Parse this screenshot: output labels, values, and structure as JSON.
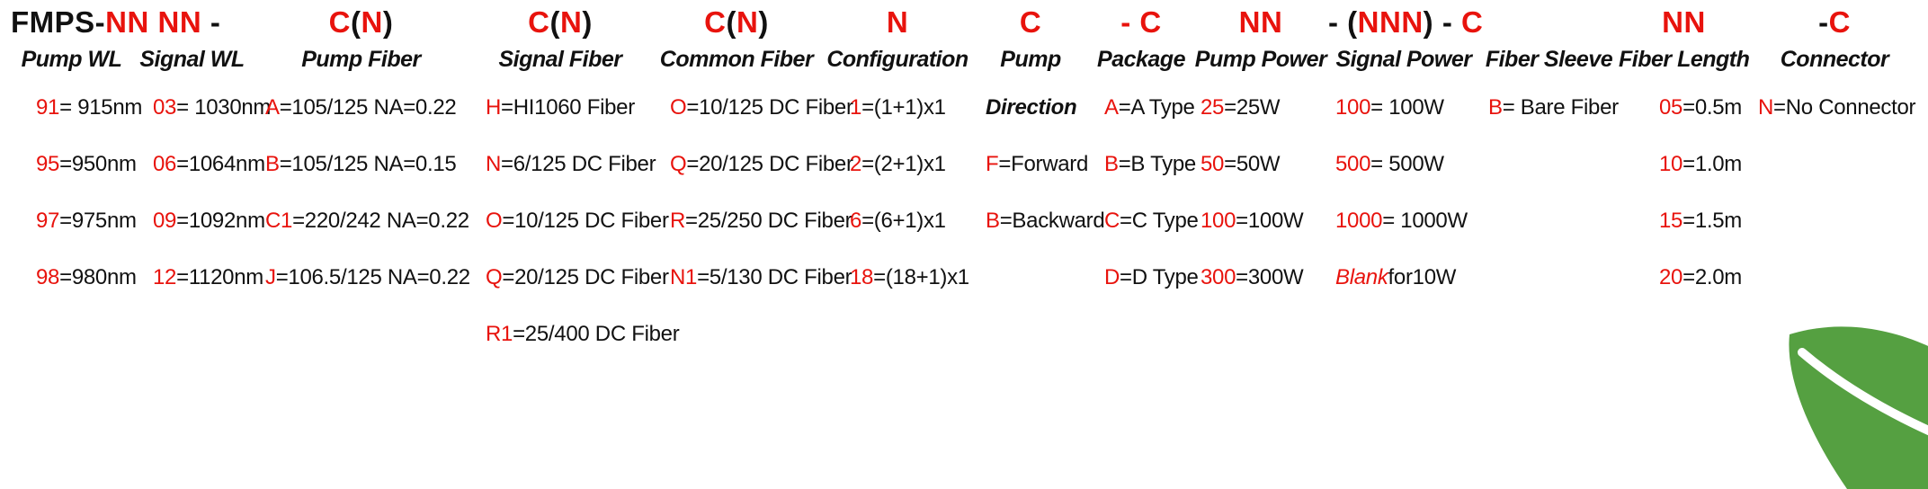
{
  "colors": {
    "red": "#e8130d",
    "leaf_green": "#55a041",
    "text": "#111111"
  },
  "code_row": [
    {
      "span": 2,
      "parts": [
        {
          "t": "FMPS-",
          "red": false
        },
        {
          "t": "NN NN",
          "red": true
        },
        {
          "t": " - ",
          "red": false
        }
      ]
    },
    {
      "parts": [
        {
          "t": "C",
          "red": true
        },
        {
          "t": "(",
          "red": false
        },
        {
          "t": "N",
          "red": true
        },
        {
          "t": ")",
          "red": false
        }
      ]
    },
    {
      "parts": [
        {
          "t": "C",
          "red": true
        },
        {
          "t": "(",
          "red": false
        },
        {
          "t": "N",
          "red": true
        },
        {
          "t": ")",
          "red": false
        }
      ]
    },
    {
      "parts": [
        {
          "t": "C",
          "red": true
        },
        {
          "t": "(",
          "red": false
        },
        {
          "t": "N",
          "red": true
        },
        {
          "t": ")",
          "red": false
        }
      ]
    },
    {
      "parts": [
        {
          "t": "N",
          "red": true
        }
      ]
    },
    {
      "parts": [
        {
          "t": "C",
          "red": true
        }
      ]
    },
    {
      "parts": [
        {
          "t": "- C",
          "red": true
        }
      ]
    },
    {
      "parts": [
        {
          "t": "NN",
          "red": true
        }
      ]
    },
    {
      "parts": [
        {
          "t": "- (",
          "red": false
        },
        {
          "t": "NNN",
          "red": true
        },
        {
          "t": ") - ",
          "red": false
        },
        {
          "t": "C",
          "red": true
        }
      ]
    },
    {
      "parts": []
    },
    {
      "parts": [
        {
          "t": "NN",
          "red": true
        }
      ]
    },
    {
      "parts": [
        {
          "t": "-",
          "red": false
        },
        {
          "t": "C",
          "red": true
        }
      ]
    }
  ],
  "columns": [
    {
      "header": "Pump WL",
      "entries": [
        {
          "code": "91",
          "desc": "= 915nm"
        },
        {
          "code": "95",
          "desc": "=950nm"
        },
        {
          "code": "97",
          "desc": "=975nm"
        },
        {
          "code": "98",
          "desc": "=980nm"
        }
      ]
    },
    {
      "header": "Signal WL",
      "entries": [
        {
          "code": "03",
          "desc": "= 1030nm"
        },
        {
          "code": "06",
          "desc": "=1064nm"
        },
        {
          "code": "09",
          "desc": "=1092nm"
        },
        {
          "code": "12",
          "desc": "=1120nm"
        }
      ]
    },
    {
      "header": "Pump Fiber",
      "entries": [
        {
          "code": "A",
          "desc": "=105/125 NA=0.22"
        },
        {
          "code": "B",
          "desc": "=105/125 NA=0.15"
        },
        {
          "code": "C1",
          "desc": "=220/242 NA=0.22"
        },
        {
          "code": "J",
          "desc": "=106.5/125 NA=0.22"
        }
      ]
    },
    {
      "header": "Signal Fiber",
      "entries": [
        {
          "code": "H",
          "desc": "=HI1060 Fiber"
        },
        {
          "code": "N",
          "desc": "=6/125 DC Fiber"
        },
        {
          "code": "O",
          "desc": "=10/125 DC Fiber"
        },
        {
          "code": "Q",
          "desc": "=20/125 DC Fiber"
        },
        {
          "code": "R1",
          "desc": "=25/400 DC Fiber"
        }
      ]
    },
    {
      "header": "Common Fiber",
      "entries": [
        {
          "code": "O",
          "desc": "=10/125 DC Fiber"
        },
        {
          "code": "Q",
          "desc": "=20/125 DC Fiber"
        },
        {
          "code": "R",
          "desc": "=25/250 DC Fiber"
        },
        {
          "code": "N1",
          "desc": "=5/130 DC Fiber"
        }
      ]
    },
    {
      "header": "Configuration",
      "entries": [
        {
          "code": "1",
          "desc": "=(1+1)x1"
        },
        {
          "code": "2",
          "desc": "=(2+1)x1"
        },
        {
          "code": "6",
          "desc": "=(6+1)x1"
        },
        {
          "code": "18",
          "desc": "=(18+1)x1"
        }
      ]
    },
    {
      "header": "Pump",
      "entries": [
        {
          "code": "",
          "desc": "Direction",
          "emphasis": true
        },
        {
          "code": "F",
          "desc": "=Forward"
        },
        {
          "code": "B",
          "desc": "=Backward"
        }
      ]
    },
    {
      "header": "Package",
      "entries": [
        {
          "code": "A",
          "desc": "=A Type"
        },
        {
          "code": "B",
          "desc": "=B Type"
        },
        {
          "code": "C",
          "desc": "=C Type"
        },
        {
          "code": "D",
          "desc": "=D Type"
        }
      ]
    },
    {
      "header": "Pump Power",
      "entries": [
        {
          "code": "25",
          "desc": "=25W"
        },
        {
          "code": "50",
          "desc": "=50W"
        },
        {
          "code": "100",
          "desc": "=100W"
        },
        {
          "code": "300",
          "desc": "=300W"
        }
      ]
    },
    {
      "header": "Signal Power",
      "entries": [
        {
          "code": "100",
          "desc": "= 100W"
        },
        {
          "code": "500",
          "desc": "= 500W"
        },
        {
          "code": "1000",
          "desc": "= 1000W"
        },
        {
          "code": "Blank",
          "desc": " for10W",
          "code_italic": true
        }
      ]
    },
    {
      "header": "Fiber Sleeve",
      "entries": [
        {
          "code": "B",
          "desc": "= Bare Fiber"
        }
      ]
    },
    {
      "header": "Fiber Length",
      "entries": [
        {
          "code": "05",
          "desc": "=0.5m"
        },
        {
          "code": "10",
          "desc": "=1.0m"
        },
        {
          "code": "15",
          "desc": "=1.5m"
        },
        {
          "code": "20",
          "desc": "=2.0m"
        }
      ]
    },
    {
      "header": "Connector",
      "entries": [
        {
          "code": "N",
          "desc": "=No Connector"
        }
      ]
    }
  ]
}
